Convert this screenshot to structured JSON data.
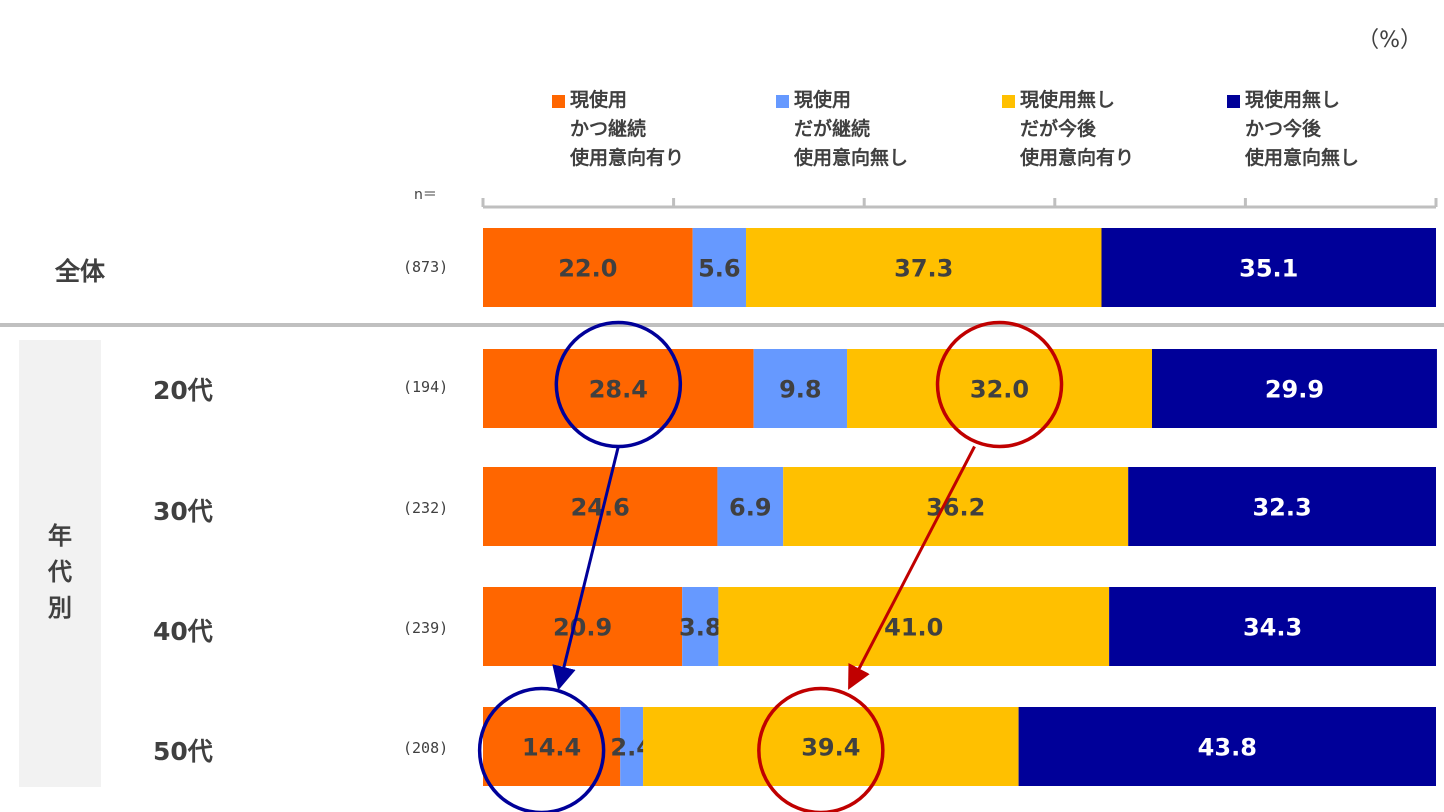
{
  "unit_label": "（%）",
  "n_header": "n＝",
  "legend": [
    {
      "lines": [
        "現使用",
        "かつ継続",
        "使用意向有り"
      ],
      "color": "#FF6600"
    },
    {
      "lines": [
        "現使用",
        "だが継続",
        "使用意向無し"
      ],
      "color": "#6699FF"
    },
    {
      "lines": [
        "現使用無し",
        "だが今後",
        "使用意向有り"
      ],
      "color": "#FFC000"
    },
    {
      "lines": [
        "現使用無し",
        "かつ今後",
        "使用意向無し"
      ],
      "color": "#000099"
    }
  ],
  "group_label": [
    "年",
    "代",
    "別"
  ],
  "rows": [
    {
      "label": "全体",
      "n": "(873)"
    },
    {
      "label": "20代",
      "n": "(194)"
    },
    {
      "label": "30代",
      "n": "(232)"
    },
    {
      "label": "40代",
      "n": "(239)"
    },
    {
      "label": "50代",
      "n": "(208)"
    }
  ],
  "chart_data": {
    "type": "bar",
    "orientation": "horizontal",
    "stacked": true,
    "percent_stacked": true,
    "title": "",
    "unit": "%",
    "xlim": [
      0,
      100
    ],
    "x_ticks": [
      0,
      20,
      40,
      60,
      80,
      100
    ],
    "tick_labels_shown": false,
    "legend_position": "top",
    "categories": [
      "全体",
      "20代",
      "30代",
      "40代",
      "50代"
    ],
    "sample_sizes": [
      873,
      194,
      232,
      239,
      208
    ],
    "series": [
      {
        "name": "現使用 かつ継続 使用意向有り",
        "color": "#FF6600",
        "label_color": "#404040",
        "values": [
          22.0,
          28.4,
          24.6,
          20.9,
          14.4
        ]
      },
      {
        "name": "現使用 だが継続 使用意向無し",
        "color": "#6699FF",
        "label_color": "#404040",
        "values": [
          5.6,
          9.8,
          6.9,
          3.8,
          2.4
        ]
      },
      {
        "name": "現使用無し だが今後 使用意向有り",
        "color": "#FFC000",
        "label_color": "#404040",
        "values": [
          37.3,
          32.0,
          36.2,
          41.0,
          39.4
        ]
      },
      {
        "name": "現使用無し かつ今後 使用意向無し",
        "color": "#000099",
        "label_color": "#FFFFFF",
        "values": [
          35.1,
          29.9,
          32.3,
          34.3,
          43.8
        ]
      }
    ],
    "annotations": [
      {
        "type": "circle-arrow",
        "color": "#000099",
        "from": {
          "category": "20代",
          "series": 0
        },
        "to": {
          "category": "50代",
          "series": 0
        }
      },
      {
        "type": "circle-arrow",
        "color": "#C00000",
        "from": {
          "category": "20代",
          "series": 2
        },
        "to": {
          "category": "50代",
          "series": 2
        }
      }
    ]
  }
}
